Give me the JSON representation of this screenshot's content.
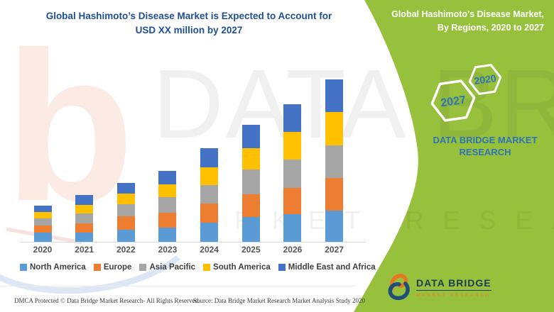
{
  "header": {
    "line1": "Global Hashimoto’s Disease Market is Expected to Account for",
    "line2": "USD XX million by 2027"
  },
  "green_panel": {
    "heading1": "Global Hashimoto’s Disease Market,",
    "heading2": "By Regions, 2020 to 2027",
    "hex_front": "2027",
    "hex_back": "2020",
    "brand1": "DATA BRIDGE MARKET",
    "brand2": "RESEARCH",
    "background_color": "#97C13C"
  },
  "chart_data": {
    "type": "bar",
    "stacked": true,
    "title": "Global Hashimoto’s Disease Market is Expected to Account for USD XX million by 2027",
    "xlabel": "",
    "ylabel": "",
    "units": "USD million (values shown as XX; heights estimated in relative units)",
    "grid": false,
    "legend_position": "bottom",
    "categories": [
      "2020",
      "2021",
      "2022",
      "2023",
      "2024",
      "2025",
      "2026",
      "2027"
    ],
    "series": [
      {
        "name": "North America",
        "color": "#5B9BD5",
        "values": [
          13,
          13,
          17,
          20,
          27,
          35,
          39,
          44
        ]
      },
      {
        "name": "Europe",
        "color": "#ED7D31",
        "values": [
          10,
          13,
          19,
          21,
          27,
          32,
          37,
          46
        ]
      },
      {
        "name": "Asia Pacific",
        "color": "#A5A5A5",
        "values": [
          10,
          14,
          17,
          22,
          26,
          35,
          40,
          46
        ]
      },
      {
        "name": "South America",
        "color": "#FFC000",
        "values": [
          9,
          12,
          15,
          18,
          25,
          30,
          39,
          47
        ]
      },
      {
        "name": "Middle East and Africa",
        "color": "#4472C4",
        "values": [
          9,
          14,
          15,
          19,
          27,
          33,
          39,
          46
        ]
      }
    ]
  },
  "watermark": {
    "big": "DATA BRI",
    "row": "MARKET RESEARCH",
    "letter": "b"
  },
  "logo": {
    "title": "DATA BRIDGE",
    "subtitle": "MARKET RESEARCH"
  },
  "footer": {
    "dmca": "DMCA Protected © Data Bridge Market Research- All Rights Reserved.",
    "source": "Source: Data Bridge Market Research Market Analysis Study 2020"
  },
  "colors": {
    "title_blue": "#1F4E91",
    "hex_text_blue": "#2E74B5",
    "green": "#97C13C",
    "axis_gray": "#D9D9D9",
    "logo_navy": "#1F3B53",
    "logo_orange": "#E87722"
  }
}
